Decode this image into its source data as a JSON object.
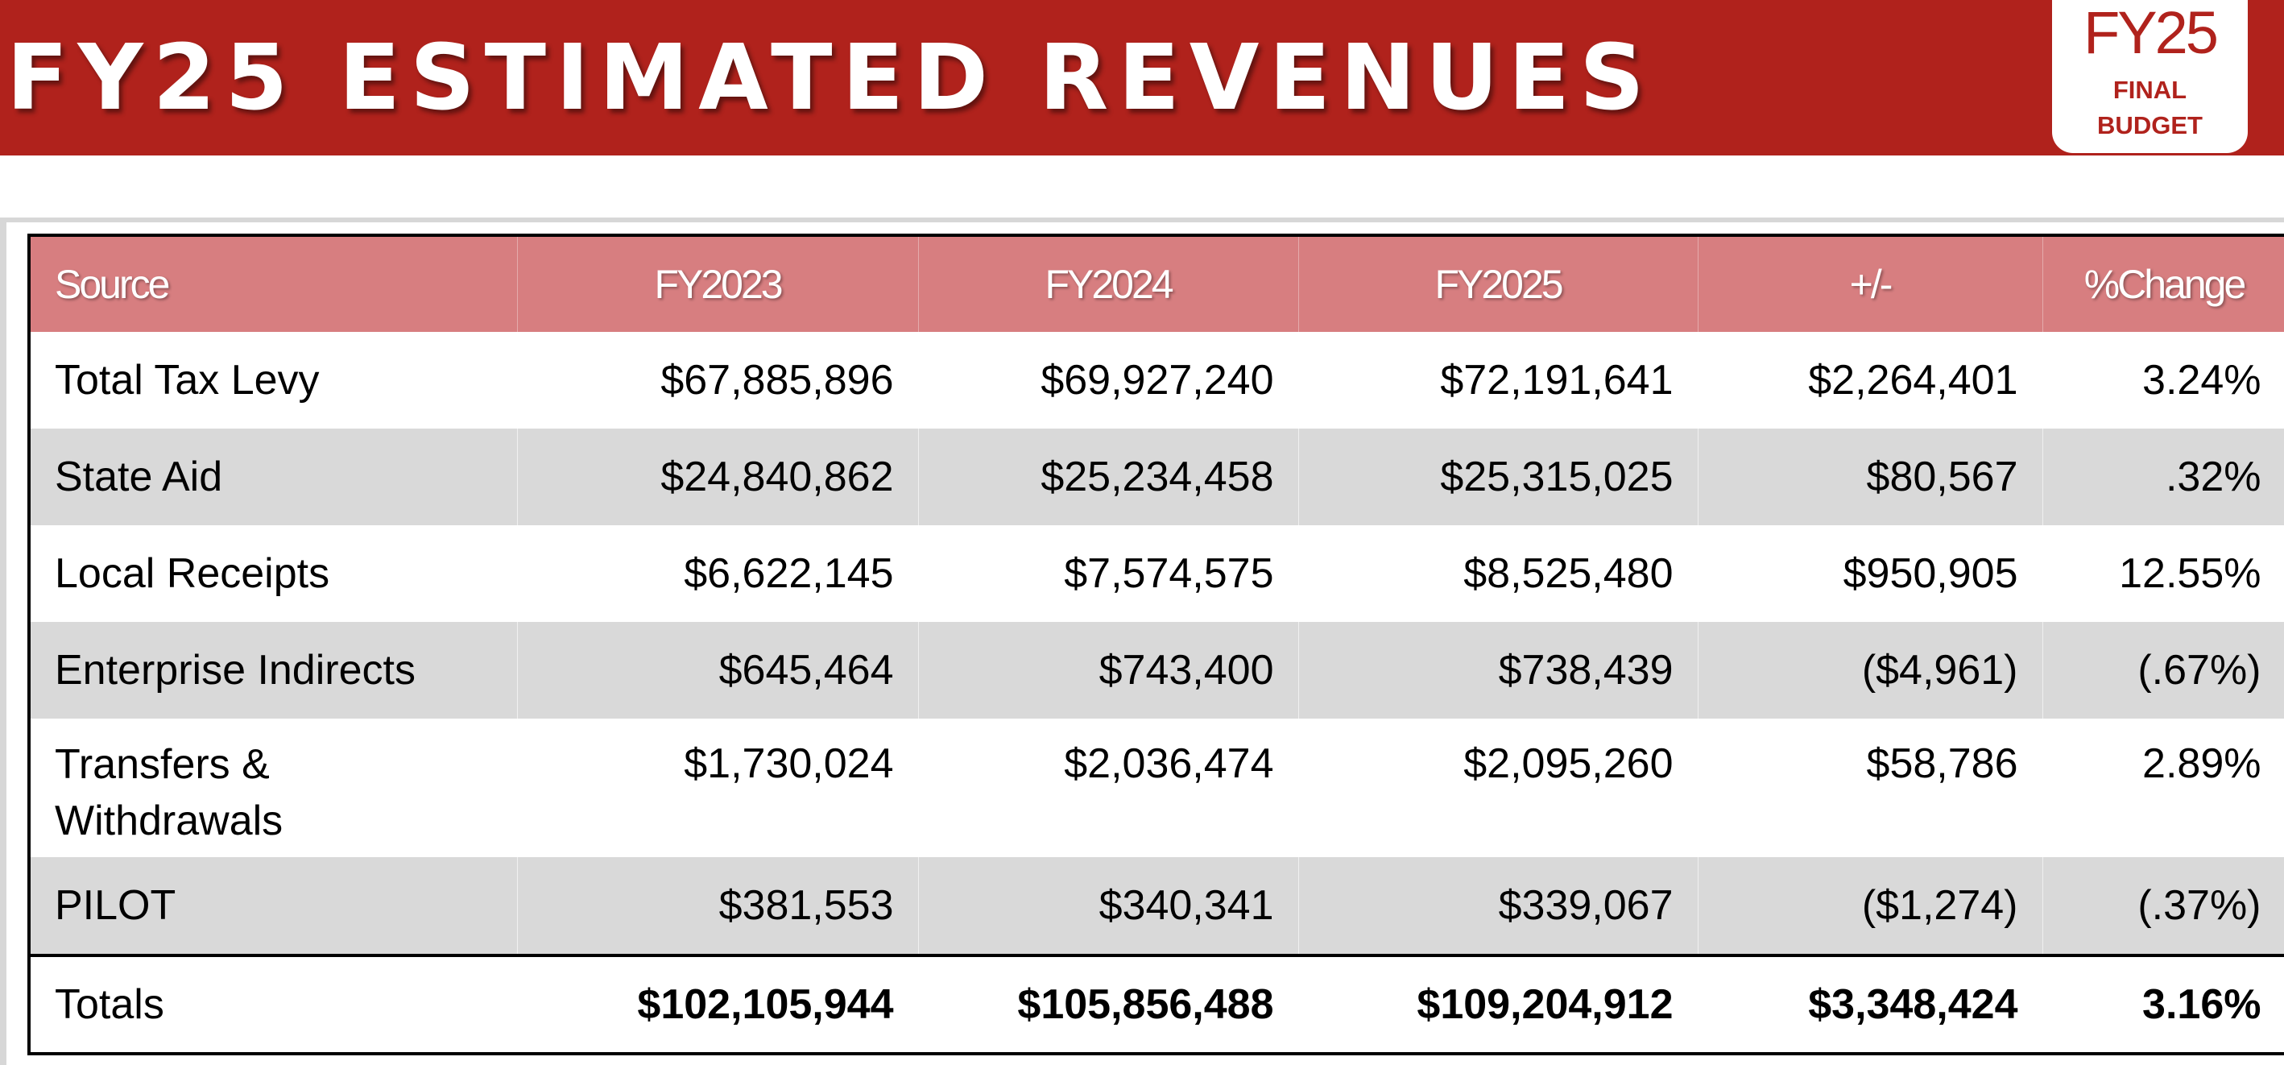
{
  "header": {
    "title": "FY25 ESTIMATED REVENUES",
    "badge": {
      "year": "FY25",
      "line1": "FINAL",
      "line2": "BUDGET"
    }
  },
  "colors": {
    "banner": "#b0221c",
    "table_header": "#d77e80",
    "row_shade": "#d9d9d9"
  },
  "table": {
    "columns": [
      "Source",
      "FY2023",
      "FY2024",
      "FY2025",
      "+/-",
      "%Change"
    ],
    "rows": [
      {
        "source": "Total Tax Levy",
        "fy2023": "$67,885,896",
        "fy2024": "$69,927,240",
        "fy2025": "$72,191,641",
        "diff": "$2,264,401",
        "pct": "3.24%"
      },
      {
        "source": "State Aid",
        "fy2023": "$24,840,862",
        "fy2024": "$25,234,458",
        "fy2025": "$25,315,025",
        "diff": "$80,567",
        "pct": ".32%"
      },
      {
        "source": "Local Receipts",
        "fy2023": "$6,622,145",
        "fy2024": "$7,574,575",
        "fy2025": "$8,525,480",
        "diff": "$950,905",
        "pct": "12.55%"
      },
      {
        "source": "Enterprise Indirects",
        "fy2023": "$645,464",
        "fy2024": "$743,400",
        "fy2025": "$738,439",
        "diff": "($4,961)",
        "pct": "(.67%)"
      },
      {
        "source": "Transfers & Withdrawals",
        "fy2023": "$1,730,024",
        "fy2024": "$2,036,474",
        "fy2025": "$2,095,260",
        "diff": "$58,786",
        "pct": "2.89%"
      },
      {
        "source": "PILOT",
        "fy2023": "$381,553",
        "fy2024": "$340,341",
        "fy2025": "$339,067",
        "diff": "($1,274)",
        "pct": "(.37%)"
      }
    ],
    "totals": {
      "source": "Totals",
      "fy2023": "$102,105,944",
      "fy2024": "$105,856,488",
      "fy2025": "$109,204,912",
      "diff": "$3,348,424",
      "pct": "3.16%"
    }
  }
}
